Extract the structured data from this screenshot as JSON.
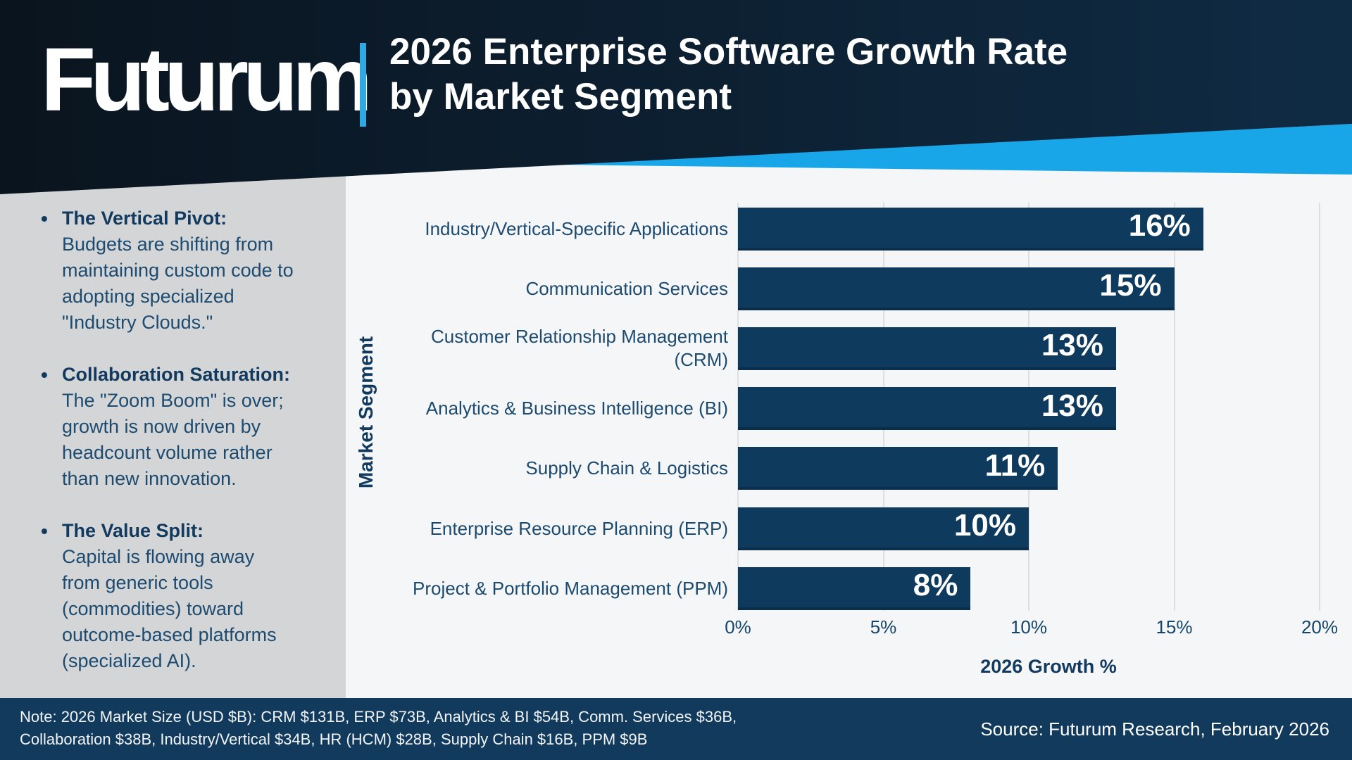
{
  "header": {
    "logo": "Futurum",
    "title": "2026 Enterprise Software Growth Rate\nby Market Segment"
  },
  "sidebar": {
    "insights": [
      {
        "heading": "The Vertical Pivot:",
        "body": "Budgets are shifting from\nmaintaining custom code to\nadopting specialized\n\"Industry Clouds.\""
      },
      {
        "heading": "Collaboration Saturation:",
        "body": "The \"Zoom Boom\" is over;\ngrowth is now driven by\nheadcount volume rather\nthan new innovation."
      },
      {
        "heading": "The Value Split:",
        "body": "Capital is flowing away\nfrom generic tools\n(commodities) toward\noutcome-based platforms\n(specialized AI)."
      }
    ]
  },
  "chart_data": {
    "type": "bar",
    "orientation": "horizontal",
    "title": "2026 Enterprise Software Growth Rate by Market Segment",
    "categories": [
      "Industry/Vertical-Specific Applications",
      "Communication Services",
      "Customer Relationship Management\n(CRM)",
      "Analytics & Business Intelligence (BI)",
      "Supply Chain & Logistics",
      "Enterprise Resource Planning (ERP)",
      "Project & Portfolio Management (PPM)"
    ],
    "values": [
      16,
      15,
      13,
      13,
      11,
      10,
      8
    ],
    "value_labels": [
      "16%",
      "15%",
      "13%",
      "13%",
      "11%",
      "10%",
      "8%"
    ],
    "xlabel": "2026 Growth %",
    "ylabel": "Market Segment",
    "xlim": [
      0,
      20
    ],
    "xticks": [
      0,
      5,
      10,
      15,
      20
    ],
    "xtick_labels": [
      "0%",
      "5%",
      "10%",
      "15%",
      "20%"
    ],
    "grid": true,
    "legend": false,
    "bar_color": "#0e3a5d",
    "value_label_color": "#ffffff"
  },
  "footer": {
    "note": "Note: 2026 Market Size (USD $B): CRM $131B, ERP $73B, Analytics & BI $54B, Comm. Services $36B,\nCollaboration $38B, Industry/Vertical $34B, HR (HCM) $28B, Supply Chain $16B, PPM $9B",
    "source": "Source: Futurum Research, February 2026"
  },
  "colors": {
    "header_navy_left": "#0a141e",
    "header_navy_right": "#0f2b44",
    "accent_blue": "#18a6e9",
    "bar_navy": "#0e3a5d",
    "sidebar_gray": "#d4d5d7",
    "footer_navy": "#123a5d",
    "text_navy": "#1d4b6f",
    "page_bg": "#f5f6f8"
  }
}
